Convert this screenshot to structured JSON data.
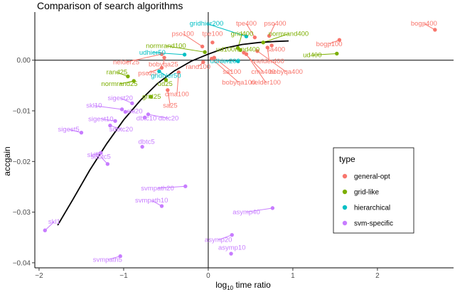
{
  "chart_data": {
    "type": "scatter",
    "title": "Comparison of search algorithms",
    "xlabel": "log10 time ratio",
    "ylabel": "accgain",
    "xlim": [
      -2.05,
      2.9
    ],
    "ylim": [
      -0.041,
      0.0095
    ],
    "x_ticks": [
      -2,
      -1,
      0,
      1,
      2
    ],
    "x_tick_labels": [
      "−2",
      "−1",
      "0",
      "1",
      "2"
    ],
    "y_ticks": [
      0.0,
      -0.01,
      -0.02,
      -0.03,
      -0.04
    ],
    "y_tick_labels": [
      "0.00",
      "−0.01",
      "−0.02",
      "−0.03",
      "−0.04"
    ],
    "grid": false,
    "reference_lines": {
      "x": 0,
      "y": 0
    },
    "legend": {
      "title": "type",
      "placement": "right",
      "entries": [
        {
          "key": "general-opt",
          "label": "general-opt",
          "color": "#F8766D"
        },
        {
          "key": "grid-like",
          "label": "grid-like",
          "color": "#7CAE00"
        },
        {
          "key": "hierarchical",
          "label": "hierarchical",
          "color": "#00BFC4"
        },
        {
          "key": "svm-specific",
          "label": "svm-specific",
          "color": "#C77CFF"
        }
      ]
    },
    "points": [
      {
        "label": "bogp400",
        "type": "general-opt",
        "x": 2.68,
        "y": 0.006,
        "lx": 2.55,
        "ly": 0.0068
      },
      {
        "label": "bogp100",
        "type": "general-opt",
        "x": 1.55,
        "y": 0.004,
        "lx": 1.43,
        "ly": 0.0028
      },
      {
        "label": "tpe400",
        "type": "general-opt",
        "x": 0.55,
        "y": 0.0045,
        "lx": 0.45,
        "ly": 0.0068
      },
      {
        "label": "pso400",
        "type": "general-opt",
        "x": 0.72,
        "y": 0.0048,
        "lx": 0.79,
        "ly": 0.0068
      },
      {
        "label": "pso100",
        "type": "general-opt",
        "x": -0.07,
        "y": 0.0027,
        "lx": -0.3,
        "ly": 0.0048
      },
      {
        "label": "tpe100",
        "type": "general-opt",
        "x": 0.05,
        "y": 0.0035,
        "lx": 0.05,
        "ly": 0.0048
      },
      {
        "label": "nelder400",
        "type": "general-opt",
        "x": 0.7,
        "y": 0.0025,
        "lx": 0.72,
        "ly": -0.0006
      },
      {
        "label": "sa400",
        "type": "general-opt",
        "x": 0.75,
        "y": 0.0029,
        "lx": 0.8,
        "ly": 0.0017
      },
      {
        "label": "nelder25",
        "type": "general-opt",
        "x": -0.55,
        "y": 0.0012,
        "lx": -0.97,
        "ly": -0.0008
      },
      {
        "label": "bobyqa25",
        "type": "general-opt",
        "x": -0.52,
        "y": 0.0005,
        "lx": -0.53,
        "ly": -0.0012
      },
      {
        "label": "pso25",
        "type": "general-opt",
        "x": -0.55,
        "y": -0.0015,
        "lx": -0.72,
        "ly": -0.003
      },
      {
        "label": "rand100",
        "type": "general-opt",
        "x": -0.06,
        "y": -0.0004,
        "lx": -0.12,
        "ly": -0.0017
      },
      {
        "label": "sa100",
        "type": "general-opt",
        "x": 0.07,
        "y": 0.0005,
        "lx": 0.28,
        "ly": -0.0027
      },
      {
        "label": "cma400",
        "type": "general-opt",
        "x": 0.42,
        "y": 0.0015,
        "lx": 0.65,
        "ly": -0.0027
      },
      {
        "label": "bobyqa400",
        "type": "general-opt",
        "x": 0.58,
        "y": 0.0018,
        "lx": 0.92,
        "ly": -0.0027
      },
      {
        "label": "bobyqa100",
        "type": "general-opt",
        "x": 0.04,
        "y": 0.0003,
        "lx": 0.36,
        "ly": -0.0048
      },
      {
        "label": "nelder100",
        "type": "general-opt",
        "x": 0.45,
        "y": 0.0012,
        "lx": 0.68,
        "ly": -0.0048
      },
      {
        "label": "cma100",
        "type": "general-opt",
        "x": -0.35,
        "y": -0.0024,
        "lx": -0.37,
        "ly": -0.0071
      },
      {
        "label": "sa25",
        "type": "general-opt",
        "x": -0.48,
        "y": -0.0059,
        "lx": -0.45,
        "ly": -0.0094
      },
      {
        "label": "grid400",
        "type": "grid-like",
        "x": 0.35,
        "y": 0.0024,
        "lx": 0.4,
        "ly": 0.0048
      },
      {
        "label": "normrand400",
        "type": "grid-like",
        "x": 0.65,
        "y": 0.0035,
        "lx": 0.95,
        "ly": 0.0048
      },
      {
        "label": "normrand100",
        "type": "grid-like",
        "x": -0.04,
        "y": 0.0016,
        "lx": -0.5,
        "ly": 0.0024
      },
      {
        "label": "ud100rand400",
        "type": "grid-like",
        "x": 0.38,
        "y": 0.002,
        "lx": 0.35,
        "ly": 0.0017
      },
      {
        "label": "ud400",
        "type": "grid-like",
        "x": 1.52,
        "y": 0.0013,
        "lx": 1.23,
        "ly": 0.0006
      },
      {
        "label": "rand25",
        "type": "grid-like",
        "x": -0.95,
        "y": -0.0032,
        "lx": -1.08,
        "ly": -0.0028
      },
      {
        "label": "normrand25",
        "type": "grid-like",
        "x": -0.88,
        "y": -0.0041,
        "lx": -1.05,
        "ly": -0.0051
      },
      {
        "label": "ud25",
        "type": "grid-like",
        "x": -0.5,
        "y": -0.0039,
        "lx": -0.51,
        "ly": -0.0051
      },
      {
        "label": "grid25",
        "type": "grid-like",
        "x": -0.68,
        "y": -0.0072,
        "lx": -0.67,
        "ly": -0.0076
      },
      {
        "label": "gridhier200",
        "type": "hierarchical",
        "x": 0.45,
        "y": 0.0047,
        "lx": -0.02,
        "ly": 0.0068
      },
      {
        "label": "udhier50",
        "type": "hierarchical",
        "x": -0.28,
        "y": 0.0011,
        "lx": -0.66,
        "ly": 0.0011
      },
      {
        "label": "udhier200",
        "type": "hierarchical",
        "x": 0.35,
        "y": -0.0002,
        "lx": 0.2,
        "ly": -0.0006
      },
      {
        "label": "gridhier50",
        "type": "hierarchical",
        "x": -0.58,
        "y": -0.0022,
        "lx": -0.5,
        "ly": -0.0035
      },
      {
        "label": "sigest20",
        "type": "svm-specific",
        "x": -0.9,
        "y": -0.0085,
        "lx": -1.04,
        "ly": -0.0079
      },
      {
        "label": "skl10",
        "type": "svm-specific",
        "x": -1.02,
        "y": -0.0097,
        "lx": -1.35,
        "ly": -0.0094
      },
      {
        "label": "skl20",
        "type": "svm-specific",
        "x": -0.98,
        "y": -0.0102,
        "lx": -0.87,
        "ly": -0.0105
      },
      {
        "label": "dbtc20",
        "type": "svm-specific",
        "x": -0.71,
        "y": -0.0107,
        "lx": -0.47,
        "ly": -0.0119
      },
      {
        "label": "sigest10",
        "type": "svm-specific",
        "x": -1.1,
        "y": -0.012,
        "lx": -1.27,
        "ly": -0.012
      },
      {
        "label": "dbtc10",
        "type": "svm-specific",
        "x": -0.75,
        "y": -0.0113,
        "lx": -0.73,
        "ly": -0.0119
      },
      {
        "label": "sigest5",
        "type": "svm-specific",
        "x": -1.5,
        "y": -0.0143,
        "lx": -1.65,
        "ly": -0.0141
      },
      {
        "label": "sdbtc20",
        "type": "svm-specific",
        "x": -1.16,
        "y": -0.0129,
        "lx": -1.03,
        "ly": -0.0141
      },
      {
        "label": "dbtc5",
        "type": "svm-specific",
        "x": -0.78,
        "y": -0.0171,
        "lx": -0.73,
        "ly": -0.0165
      },
      {
        "label": "skl5",
        "type": "svm-specific",
        "x": -1.27,
        "y": -0.0183,
        "lx": -1.36,
        "ly": -0.0191
      },
      {
        "label": "sdbtc5",
        "type": "svm-specific",
        "x": -1.19,
        "y": -0.0205,
        "lx": -1.27,
        "ly": -0.0195
      },
      {
        "label": "svmpath20",
        "type": "svm-specific",
        "x": -0.27,
        "y": -0.0249,
        "lx": -0.6,
        "ly": -0.0257
      },
      {
        "label": "svmpath10",
        "type": "svm-specific",
        "x": -0.55,
        "y": -0.0288,
        "lx": -0.67,
        "ly": -0.0281
      },
      {
        "label": "asymp40",
        "type": "svm-specific",
        "x": 0.76,
        "y": -0.0292,
        "lx": 0.45,
        "ly": -0.0304
      },
      {
        "label": "asymp20",
        "type": "svm-specific",
        "x": 0.28,
        "y": -0.0345,
        "lx": 0.12,
        "ly": -0.0359
      },
      {
        "label": "asymp10",
        "type": "svm-specific",
        "x": 0.27,
        "y": -0.0382,
        "lx": 0.28,
        "ly": -0.0374
      },
      {
        "label": "skl1",
        "type": "svm-specific",
        "x": -1.93,
        "y": -0.0336,
        "lx": -1.82,
        "ly": -0.0323
      },
      {
        "label": "svmpath5",
        "type": "svm-specific",
        "x": -1.04,
        "y": -0.0387,
        "lx": -1.19,
        "ly": -0.0398
      }
    ],
    "trend_curve": {
      "color": "#000000",
      "x": [
        -1.78,
        -1.6,
        -1.4,
        -1.2,
        -1.0,
        -0.8,
        -0.6,
        -0.4,
        -0.2,
        0.0,
        0.2,
        0.4,
        0.6,
        0.8,
        0.95
      ],
      "y": [
        -0.0326,
        -0.0275,
        -0.0217,
        -0.0165,
        -0.0118,
        -0.0079,
        -0.0046,
        -0.0021,
        -0.0002,
        0.0012,
        0.0024,
        0.0031,
        0.0035,
        0.0037,
        0.0038
      ]
    }
  }
}
